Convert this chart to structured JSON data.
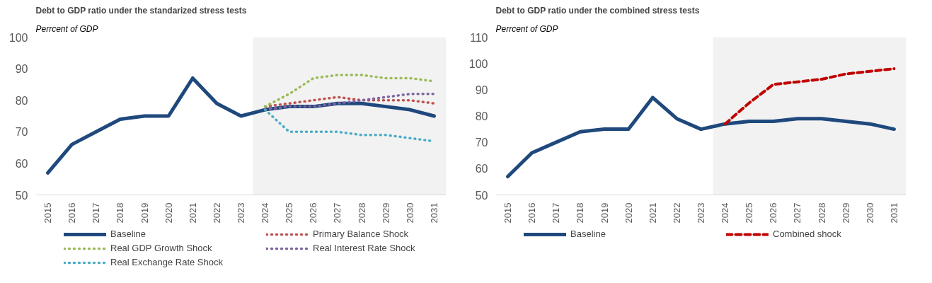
{
  "chart_data": [
    {
      "type": "line",
      "title": "Debt to GDP ratio under the standarized stress tests",
      "subtitle": "Perrcent of GDP",
      "x": [
        2015,
        2016,
        2017,
        2018,
        2019,
        2020,
        2021,
        2022,
        2023,
        2024,
        2025,
        2026,
        2027,
        2028,
        2029,
        2030,
        2031
      ],
      "xlim": [
        2014.5,
        2031.5
      ],
      "xticks": [
        2015,
        2016,
        2017,
        2018,
        2019,
        2020,
        2021,
        2022,
        2023,
        2024,
        2025,
        2026,
        2027,
        2028,
        2029,
        2030,
        2031
      ],
      "ylim": [
        50,
        100
      ],
      "yticks": [
        50,
        60,
        70,
        80,
        90,
        100
      ],
      "grid": false,
      "legend": "bottom",
      "bands": [
        {
          "axis": "x",
          "from": 2023.5,
          "to": 2031.5,
          "color": "#f2f2f2"
        }
      ],
      "series": [
        {
          "name": "Baseline",
          "color": "#1f497d",
          "line_style": "solid",
          "values": [
            57,
            66,
            70,
            74,
            75,
            75,
            87,
            79,
            75,
            77,
            78,
            78,
            79,
            79,
            78,
            77,
            75
          ]
        },
        {
          "name": "Primary Balance Shock",
          "color": "#c0504d",
          "line_style": "dotted",
          "values": [
            null,
            null,
            null,
            null,
            null,
            null,
            null,
            null,
            null,
            78,
            79,
            80,
            81,
            80,
            80,
            80,
            79
          ]
        },
        {
          "name": "Real GDP Growth Shock",
          "color": "#9bbb59",
          "line_style": "dotted",
          "values": [
            null,
            null,
            null,
            null,
            null,
            null,
            null,
            null,
            null,
            78,
            82,
            87,
            88,
            88,
            87,
            87,
            86
          ]
        },
        {
          "name": "Real Interest Rate Shock",
          "color": "#8064a2",
          "line_style": "dotted",
          "values": [
            null,
            null,
            null,
            null,
            null,
            null,
            null,
            null,
            null,
            77,
            78,
            78,
            79,
            80,
            81,
            82,
            82
          ]
        },
        {
          "name": "Real Exchange Rate Shock",
          "color": "#4bacc6",
          "line_style": "dotted",
          "values": [
            null,
            null,
            null,
            null,
            null,
            null,
            null,
            null,
            null,
            77,
            70,
            70,
            70,
            69,
            69,
            68,
            67
          ]
        }
      ]
    },
    {
      "type": "line",
      "title": "Debt to GDP ratio under the combined stress tests",
      "subtitle": "Perrcent of GDP",
      "x": [
        2015,
        2016,
        2017,
        2018,
        2019,
        2020,
        2021,
        2022,
        2023,
        2024,
        2025,
        2026,
        2027,
        2028,
        2029,
        2030,
        2031
      ],
      "xlim": [
        2014.5,
        2031.5
      ],
      "xticks": [
        2015,
        2016,
        2017,
        2018,
        2019,
        2020,
        2021,
        2022,
        2023,
        2024,
        2025,
        2026,
        2027,
        2028,
        2029,
        2030,
        2031
      ],
      "ylim": [
        50,
        110
      ],
      "yticks": [
        50,
        60,
        70,
        80,
        90,
        100,
        110
      ],
      "grid": false,
      "legend": "bottom",
      "bands": [
        {
          "axis": "x",
          "from": 2023.5,
          "to": 2031.5,
          "color": "#f2f2f2"
        }
      ],
      "series": [
        {
          "name": "Baseline",
          "color": "#1f497d",
          "line_style": "solid",
          "values": [
            57,
            66,
            70,
            74,
            75,
            75,
            87,
            79,
            75,
            77,
            78,
            78,
            79,
            79,
            78,
            77,
            75
          ]
        },
        {
          "name": "Combined shock",
          "color": "#c00000",
          "line_style": "dashed",
          "values": [
            null,
            null,
            null,
            null,
            null,
            null,
            null,
            null,
            null,
            77,
            85,
            92,
            93,
            94,
            96,
            97,
            98
          ]
        }
      ]
    }
  ]
}
